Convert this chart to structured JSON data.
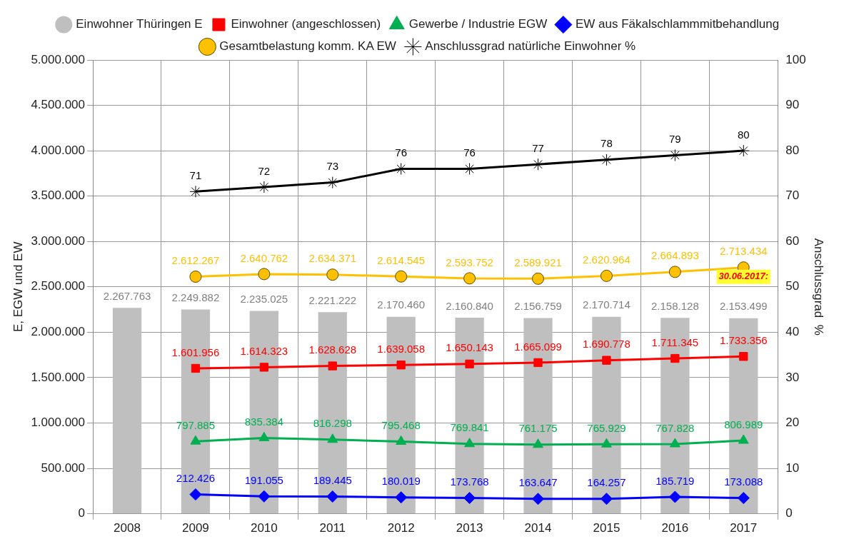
{
  "chart_data": {
    "type": "bar",
    "categories": [
      "2008",
      "2009",
      "2010",
      "2011",
      "2012",
      "2013",
      "2014",
      "2015",
      "2016",
      "2017"
    ],
    "ylabel": "E, EGW und EW",
    "y2label": "Anschlussgrad  %",
    "ylim": [
      0,
      5000000
    ],
    "yticks": [
      {
        "value": 0,
        "label": "0"
      },
      {
        "value": 500000,
        "label": "500.000"
      },
      {
        "value": 1000000,
        "label": "1.000.000"
      },
      {
        "value": 1500000,
        "label": "1.500.000"
      },
      {
        "value": 2000000,
        "label": "2.000.000"
      },
      {
        "value": 2500000,
        "label": "2.500.000"
      },
      {
        "value": 3000000,
        "label": "3.000.000"
      },
      {
        "value": 3500000,
        "label": "3.500.000"
      },
      {
        "value": 4000000,
        "label": "4.000.000"
      },
      {
        "value": 4500000,
        "label": "4.500.000"
      },
      {
        "value": 5000000,
        "label": "5.000.000"
      }
    ],
    "y2lim": [
      0,
      100
    ],
    "y2ticks": [
      0,
      10,
      20,
      30,
      40,
      50,
      60,
      70,
      80,
      90,
      100
    ],
    "grid": true,
    "legend": "top",
    "series": [
      {
        "name": "Einwohner Thüringen E",
        "color": "#bfbfbf",
        "values": [
          2267763,
          2249882,
          2235025,
          2221222,
          2170460,
          2160840,
          2156759,
          2170714,
          2158128,
          2153499
        ],
        "value_labels": [
          "2.267.763",
          "2.249.882",
          "2.235.025",
          "2.221.222",
          "2.170.460",
          "2.160.840",
          "2.156.759",
          "2.170.714",
          "2.158.128",
          "2.153.499"
        ]
      },
      {
        "name": "Einwohner (angeschlossen)",
        "type": "line",
        "color": "#ff0000",
        "marker": "square",
        "values": [
          null,
          1601956,
          1614323,
          1628628,
          1639058,
          1650143,
          1665099,
          1690778,
          1711345,
          1733356
        ],
        "value_labels": [
          null,
          "1.601.956",
          "1.614.323",
          "1.628.628",
          "1.639.058",
          "1.650.143",
          "1.665.099",
          "1.690.778",
          "1.711.345",
          "1.733.356"
        ]
      },
      {
        "name": "Gewerbe / Industrie EGW",
        "type": "line",
        "color": "#00b050",
        "marker": "triangle",
        "values": [
          null,
          797885,
          835384,
          816298,
          795468,
          769841,
          761175,
          765929,
          767828,
          806989
        ],
        "value_labels": [
          null,
          "797.885",
          "835.384",
          "816.298",
          "795.468",
          "769.841",
          "761.175",
          "765.929",
          "767.828",
          "806.989"
        ]
      },
      {
        "name": "EW aus Fäkalschlammmitbehandlung",
        "type": "line",
        "color": "#0000ff",
        "marker": "diamond",
        "values": [
          null,
          212426,
          191055,
          189445,
          180019,
          173768,
          163647,
          164257,
          185719,
          173088
        ],
        "value_labels": [
          null,
          "212.426",
          "191.055",
          "189.445",
          "180.019",
          "173.768",
          "163.647",
          "164.257",
          "185.719",
          "173.088"
        ]
      },
      {
        "name": "Gesamtbelastung komm. KA EW",
        "type": "line",
        "color": "#ffc000",
        "marker": "circle",
        "values": [
          null,
          2612267,
          2640762,
          2634371,
          2614545,
          2593752,
          2589921,
          2620964,
          2664893,
          2713434
        ],
        "value_labels": [
          null,
          "2.612.267",
          "2.640.762",
          "2.634.371",
          "2.614.545",
          "2.593.752",
          "2.589.921",
          "2.620.964",
          "2.664.893",
          "2.713.434"
        ]
      },
      {
        "name": "Anschlussgrad natürliche Einwohner %",
        "type": "line",
        "axis": "y2",
        "color": "#000000",
        "marker": "cross",
        "values": [
          null,
          71,
          72,
          73,
          76,
          76,
          77,
          78,
          79,
          80
        ],
        "value_labels": [
          null,
          "71",
          "72",
          "73",
          "76",
          "76",
          "77",
          "78",
          "79",
          "80"
        ]
      }
    ],
    "annotations": [
      "30.06.2017:"
    ]
  }
}
